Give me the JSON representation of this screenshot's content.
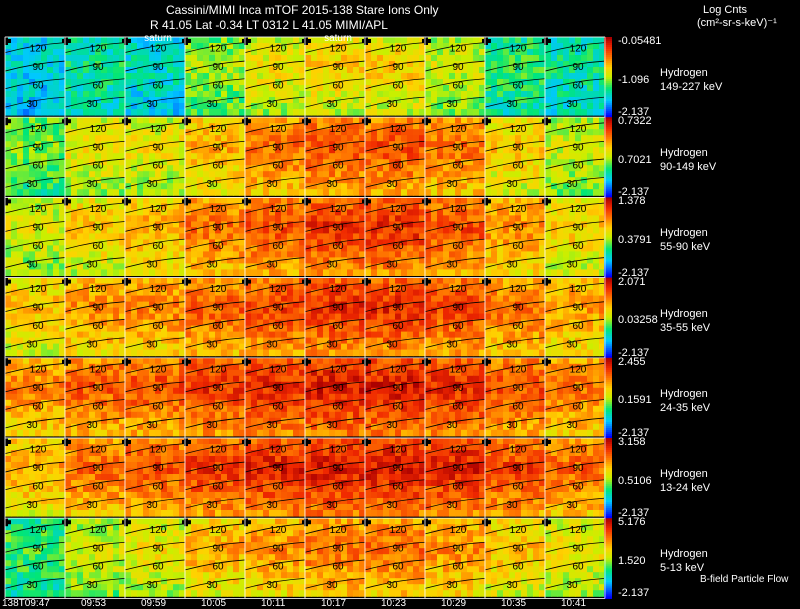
{
  "header": {
    "title": "Cassini/MIMI Inca mTOF  2015-138   Stare   Ions Only",
    "info": "R        41.05 Lat -0.34 LT 0312 L        41.05   MIMI/APL"
  },
  "units": {
    "line1": "Log Cnts",
    "line2": "(cm²-sr-s-keV)⁻¹"
  },
  "footer_note": "B-field Particle Flow",
  "time_labels": [
    "138T09:47",
    "09:53",
    "09:59",
    "10:05",
    "10:11",
    "10:17",
    "10:23",
    "10:29",
    "10:35",
    "10:41"
  ],
  "saturn_markers": [
    {
      "panel": 2,
      "label": "saturn"
    },
    {
      "panel": 5,
      "label": "saturn"
    }
  ],
  "contour_labels": [
    "120",
    "90",
    "60",
    "30"
  ],
  "colors": {
    "scale_high": "#ff0000",
    "scale_mid": "#ffff00",
    "scale_low_mid": "#00ffff",
    "scale_low": "#0000ff"
  },
  "chart_data": {
    "type": "heatmap",
    "title": "Cassini/MIMI Inca mTOF  2015-138   Stare   Ions Only",
    "xlabel": "",
    "ylabel": "",
    "x": [
      "138T09:47",
      "09:53",
      "09:59",
      "10:05",
      "10:11",
      "10:17",
      "10:23",
      "10:29",
      "10:35",
      "10:41"
    ],
    "series": [
      {
        "name": "Hydrogen",
        "range": "149-227 keV",
        "scale": [
          "-0.05481",
          "-1.096",
          "-2.137"
        ],
        "intensity": [
          0.25,
          0.3,
          0.25,
          0.45,
          0.55,
          0.6,
          0.6,
          0.5,
          0.35,
          0.3
        ]
      },
      {
        "name": "Hydrogen",
        "range": "90-149 keV",
        "scale": [
          "0.7322",
          "0.7021",
          "-2.137"
        ],
        "intensity": [
          0.45,
          0.55,
          0.55,
          0.65,
          0.75,
          0.8,
          0.8,
          0.75,
          0.6,
          0.5
        ]
      },
      {
        "name": "Hydrogen",
        "range": "55-90 keV",
        "scale": [
          "1.378",
          "0.3791",
          "-2.137"
        ],
        "intensity": [
          0.55,
          0.6,
          0.65,
          0.75,
          0.8,
          0.85,
          0.85,
          0.8,
          0.7,
          0.6
        ]
      },
      {
        "name": "Hydrogen",
        "range": "35-55 keV",
        "scale": [
          "2.071",
          "0.03258",
          "-2.137"
        ],
        "intensity": [
          0.65,
          0.7,
          0.72,
          0.78,
          0.82,
          0.86,
          0.86,
          0.82,
          0.75,
          0.68
        ]
      },
      {
        "name": "Hydrogen",
        "range": "24-35 keV",
        "scale": [
          "2.455",
          "0.1591",
          "-2.137"
        ],
        "intensity": [
          0.75,
          0.78,
          0.8,
          0.84,
          0.86,
          0.9,
          0.9,
          0.86,
          0.8,
          0.74
        ]
      },
      {
        "name": "Hydrogen",
        "range": "13-24 keV",
        "scale": [
          "3.158",
          "0.5106",
          "-2.137"
        ],
        "intensity": [
          0.7,
          0.76,
          0.8,
          0.84,
          0.88,
          0.9,
          0.9,
          0.88,
          0.82,
          0.76
        ]
      },
      {
        "name": "Hydrogen",
        "range": "5-13 keV",
        "scale": [
          "5.176",
          "1.520",
          "-2.137"
        ],
        "intensity": [
          0.4,
          0.5,
          0.55,
          0.65,
          0.7,
          0.75,
          0.75,
          0.7,
          0.62,
          0.55
        ]
      }
    ]
  }
}
